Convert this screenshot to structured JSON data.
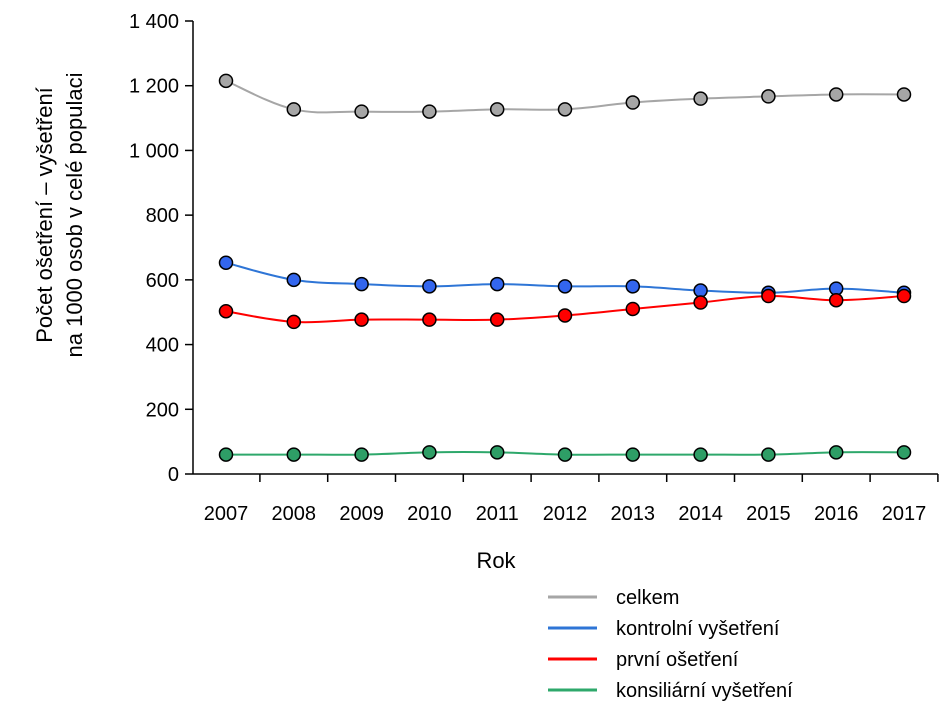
{
  "chart_data": {
    "type": "line",
    "xlabel": "Rok",
    "ylabel": [
      "Počet ošetření – vyšetření",
      "na 1000 osob v celé populaci"
    ],
    "categories": [
      "2007",
      "2008",
      "2009",
      "2010",
      "2011",
      "2012",
      "2013",
      "2014",
      "2015",
      "2016",
      "2017"
    ],
    "ylim": [
      0,
      1400
    ],
    "yticks": [
      0,
      200,
      400,
      600,
      800,
      1000,
      1200,
      1400
    ],
    "ytick_labels": [
      "0",
      "200",
      "400",
      "600",
      "800",
      "1 000",
      "1 200",
      "1 400"
    ],
    "grid": false,
    "legend_position": "bottom-right",
    "series": [
      {
        "name": "celkem",
        "line_color": "#a6a6a6",
        "marker_color": "#a6a6a6",
        "values": [
          1215,
          1127,
          1120,
          1120,
          1127,
          1127,
          1148,
          1160,
          1167,
          1173,
          1173
        ]
      },
      {
        "name": "kontrolní vyšetření",
        "line_color": "#2e75d6",
        "marker_color": "#3366ee",
        "values": [
          653,
          600,
          587,
          580,
          587,
          580,
          580,
          567,
          560,
          573,
          560
        ]
      },
      {
        "name": "první ošetření",
        "line_color": "#ff0000",
        "marker_color": "#ff0000",
        "values": [
          503,
          470,
          477,
          477,
          477,
          490,
          510,
          530,
          550,
          537,
          550
        ]
      },
      {
        "name": "konsiliární vyšetření",
        "line_color": "#2ea86b",
        "marker_color": "#2e9e66",
        "values": [
          60,
          60,
          60,
          67,
          67,
          60,
          60,
          60,
          60,
          67,
          67
        ]
      }
    ]
  }
}
